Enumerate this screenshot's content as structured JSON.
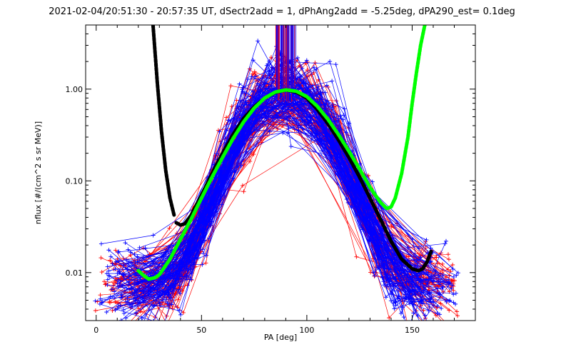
{
  "chart_data": {
    "type": "line",
    "title": "2021-02-04/20:51:30 - 20:57:35 UT, dSectr2add = 1, dPhAng2add = -5.25deg, dPA290_est=   0.1deg",
    "xlabel": "PA [deg]",
    "ylabel": "nflux [#/(cm^2 s sr MeV)]",
    "xlim": [
      -5,
      180
    ],
    "ylim": [
      0.003,
      5.0
    ],
    "yscale": "log",
    "x_ticks": [
      0,
      50,
      100,
      150
    ],
    "x_tick_labels": [
      "0",
      "50",
      "100",
      "150"
    ],
    "y_ticks": [
      0.01,
      0.1,
      1.0
    ],
    "y_tick_labels": [
      "0.01",
      "0.10",
      "1.00"
    ],
    "grid": false,
    "colors": {
      "red_series": "#ff0000",
      "blue_series": "#0000ff",
      "black_fit": "#000000",
      "green_fit": "#00ff00"
    },
    "fits": [
      {
        "color": "black",
        "style": "thick-dashed",
        "x": [
          38,
          40,
          42,
          45,
          50,
          55,
          60,
          65,
          70,
          75,
          80,
          85,
          90,
          95,
          100,
          105,
          110,
          115,
          120,
          125,
          130,
          135,
          140,
          145,
          150,
          153,
          155,
          157,
          159
        ],
        "y": [
          0.035,
          0.033,
          0.034,
          0.042,
          0.07,
          0.12,
          0.2,
          0.32,
          0.48,
          0.64,
          0.8,
          0.92,
          0.98,
          0.93,
          0.8,
          0.6,
          0.42,
          0.28,
          0.18,
          0.11,
          0.065,
          0.038,
          0.022,
          0.014,
          0.011,
          0.0105,
          0.011,
          0.013,
          0.017
        ]
      },
      {
        "color": "black",
        "style": "thick-dashed",
        "x": [
          27,
          29,
          31,
          33,
          35,
          37
        ],
        "y": [
          5.0,
          1.2,
          0.35,
          0.13,
          0.065,
          0.042
        ]
      },
      {
        "color": "green",
        "style": "thick-dashed",
        "x": [
          20,
          22,
          25,
          28,
          30,
          35,
          40,
          45,
          50,
          55,
          60,
          65,
          70,
          75,
          80,
          85,
          90,
          95,
          100,
          105,
          110,
          115,
          120,
          125,
          130,
          135,
          138,
          140,
          142,
          145,
          148,
          150,
          152,
          154,
          156
        ],
        "y": [
          0.0105,
          0.0095,
          0.0085,
          0.0088,
          0.0095,
          0.014,
          0.023,
          0.038,
          0.065,
          0.11,
          0.18,
          0.29,
          0.44,
          0.62,
          0.8,
          0.93,
          0.98,
          0.95,
          0.83,
          0.65,
          0.47,
          0.32,
          0.21,
          0.135,
          0.085,
          0.058,
          0.05,
          0.052,
          0.065,
          0.12,
          0.3,
          0.7,
          1.5,
          3.0,
          5.0
        ]
      }
    ]
  }
}
